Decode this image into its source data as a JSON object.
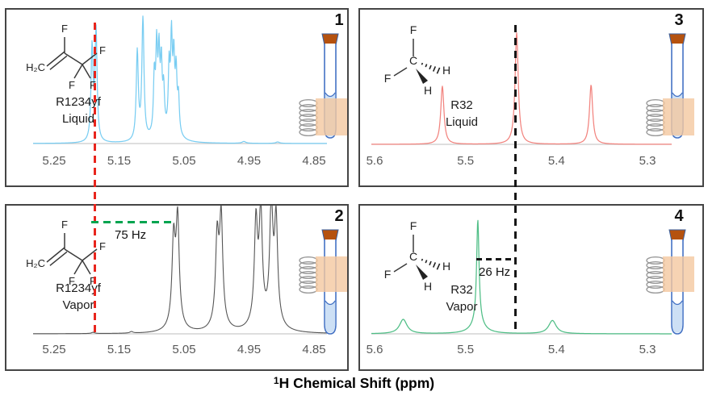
{
  "xaxis_label": {
    "superscript": "1",
    "text": "H Chemical Shift (ppm)"
  },
  "colors": {
    "baseline": "#c9c9c9",
    "tick_text": "#595959",
    "panel_border": "#454545",
    "tube_outline": "#4472c4",
    "tube_cap": "#b5520f",
    "tube_liquid": "#cde0f5",
    "coil": "#9a9a9a",
    "coil_region": "#f4c8a0",
    "red_dash": "#e8251d",
    "green_dash": "#00a44f",
    "black_dash": "#161616"
  },
  "molecules": {
    "r1234yf": {
      "atom_labels": {
        "h2c": "H₂C",
        "f_top": "F",
        "f_right": "F",
        "f_bottom_left": "F",
        "f_bottom_right": "F"
      }
    },
    "r32": {
      "atom_labels": {
        "c": "C",
        "f_top": "F",
        "f_left": "F",
        "h_right": "H",
        "h_bottom": "H"
      }
    }
  },
  "annotations": {
    "reference_lines": {
      "red": {
        "ppm": 5.1854
      },
      "black": {
        "ppm": 5.4438
      }
    },
    "couplings": [
      {
        "label": "75 Hz",
        "from_ppm": 5.0599,
        "to_ppm": 5.1854
      },
      {
        "label": "26 Hz",
        "from_ppm": 5.4865,
        "to_ppm": 5.4438
      }
    ]
  },
  "chart_data": [
    {
      "type": "line",
      "panel": 1,
      "tube_number": "1",
      "compound": "R1234yf",
      "phase": "Liquid",
      "xlabel": "1H Chemical Shift (ppm)",
      "x_left": 5.25,
      "x_right": 4.85,
      "x_ticks": [
        "5.25",
        "5.15",
        "5.05",
        "4.95",
        "4.85"
      ],
      "line_color": "#79cdf2",
      "peaks_ppm_height_hwhm": [
        [
          5.1916,
          0.76,
          0.0019
        ],
        [
          5.1854,
          0.9,
          0.0019
        ],
        [
          5.122,
          0.72,
          0.0019
        ],
        [
          5.1133,
          1.0,
          0.0019
        ],
        [
          5.0958,
          0.45,
          0.0015
        ],
        [
          5.0922,
          0.63,
          0.0015
        ],
        [
          5.0886,
          0.55,
          0.0015
        ],
        [
          5.085,
          0.5,
          0.0015
        ],
        [
          5.0814,
          0.32,
          0.0015
        ],
        [
          5.0886,
          0.12,
          0.0075
        ],
        [
          5.073,
          0.5,
          0.0015
        ],
        [
          5.0694,
          0.7,
          0.0015
        ],
        [
          5.0658,
          0.52,
          0.0015
        ],
        [
          5.0622,
          0.44,
          0.0015
        ],
        [
          5.0586,
          0.28,
          0.0015
        ],
        [
          5.0658,
          0.12,
          0.0075
        ],
        [
          4.958,
          0.015,
          0.0035
        ],
        [
          4.906,
          0.012,
          0.0035
        ]
      ]
    },
    {
      "type": "line",
      "panel": 2,
      "tube_number": "2",
      "compound": "R1234yf",
      "phase": "Vapor",
      "xlabel": "1H Chemical Shift (ppm)",
      "x_left": 5.25,
      "x_right": 4.85,
      "x_ticks": [
        "5.25",
        "5.15",
        "5.05",
        "4.95",
        "4.85"
      ],
      "line_color": "#565656",
      "peaks_ppm_height_hwhm": [
        [
          5.0661,
          0.62,
          0.0028
        ],
        [
          5.0599,
          0.78,
          0.0028
        ],
        [
          5.063,
          0.14,
          0.0085
        ],
        [
          4.9991,
          0.63,
          0.0028
        ],
        [
          4.9929,
          0.79,
          0.0028
        ],
        [
          4.996,
          0.14,
          0.0085
        ],
        [
          4.9394,
          0.74,
          0.0028
        ],
        [
          4.932,
          0.81,
          0.0028
        ],
        [
          4.9357,
          0.14,
          0.0095
        ],
        [
          4.9158,
          0.88,
          0.0028
        ],
        [
          4.9084,
          0.76,
          0.0028
        ],
        [
          4.9121,
          0.14,
          0.0095
        ],
        [
          5.19,
          0.01,
          0.003
        ],
        [
          5.131,
          0.012,
          0.003
        ]
      ]
    },
    {
      "type": "line",
      "panel": 3,
      "tube_number": "3",
      "compound": "R32",
      "phase": "Liquid",
      "xlabel": "1H Chemical Shift (ppm)",
      "x_left": 5.6,
      "x_right": 5.3,
      "x_ticks": [
        "5.6",
        "5.5",
        "5.4",
        "5.3"
      ],
      "line_color": "#f2837e",
      "peaks_ppm_height_hwhm": [
        [
          5.5255,
          0.49,
          0.0021
        ],
        [
          5.4438,
          0.94,
          0.0021
        ],
        [
          5.362,
          0.5,
          0.0021
        ]
      ]
    },
    {
      "type": "line",
      "panel": 4,
      "tube_number": "4",
      "compound": "R32",
      "phase": "Vapor",
      "xlabel": "1H Chemical Shift (ppm)",
      "x_left": 5.6,
      "x_right": 5.3,
      "x_ticks": [
        "5.6",
        "5.5",
        "5.4",
        "5.3"
      ],
      "line_color": "#4fbe86",
      "peaks_ppm_height_hwhm": [
        [
          5.5685,
          0.13,
          0.005
        ],
        [
          5.4865,
          0.93,
          0.0016
        ],
        [
          5.4865,
          0.1,
          0.008
        ],
        [
          5.4045,
          0.12,
          0.005
        ]
      ]
    }
  ]
}
